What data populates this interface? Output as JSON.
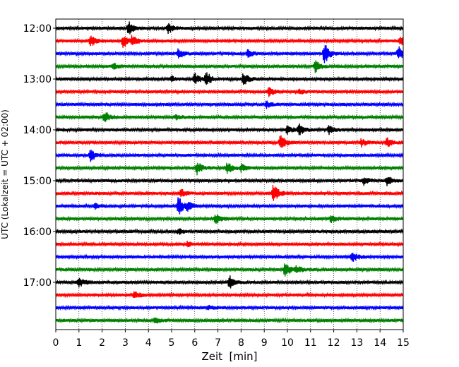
{
  "chart_data": {
    "type": "line",
    "title": "",
    "xlabel": "Zeit  [min]",
    "ylabel": "UTC (Lokalzeit = UTC + 02:00)",
    "xlim": [
      0,
      15
    ],
    "x_ticks": [
      0,
      1,
      2,
      3,
      4,
      5,
      6,
      7,
      8,
      9,
      10,
      11,
      12,
      13,
      14,
      15
    ],
    "x_tick_labels": [
      "0",
      "1",
      "2",
      "3",
      "4",
      "5",
      "6",
      "7",
      "8",
      "9",
      "10",
      "11",
      "12",
      "13",
      "14",
      "15"
    ],
    "y_tick_labels": [
      "12:00",
      "13:00",
      "14:00",
      "15:00",
      "16:00",
      "17:00"
    ],
    "grid": "vertical dotted lines at each minute",
    "legend": "none",
    "row_colors": [
      "#000000",
      "#ff0000",
      "#0000ff",
      "#008000"
    ],
    "rows": [
      {
        "start": "12:00",
        "color": "#000000",
        "events": [
          [
            3.15,
            0.5
          ],
          [
            4.85,
            0.4
          ]
        ]
      },
      {
        "start": "12:15",
        "color": "#ff0000",
        "events": [
          [
            1.5,
            0.45
          ],
          [
            2.9,
            0.55
          ],
          [
            3.3,
            0.4
          ],
          [
            14.9,
            0.35
          ]
        ]
      },
      {
        "start": "12:30",
        "color": "#0000ff",
        "events": [
          [
            5.3,
            0.4
          ],
          [
            8.3,
            0.3
          ],
          [
            11.6,
            0.85
          ],
          [
            14.8,
            0.6
          ]
        ]
      },
      {
        "start": "12:45",
        "color": "#008000",
        "events": [
          [
            2.5,
            0.2
          ],
          [
            11.2,
            0.45
          ]
        ]
      },
      {
        "start": "13:00",
        "color": "#000000",
        "events": [
          [
            6.0,
            0.5
          ],
          [
            6.5,
            0.55
          ],
          [
            8.1,
            0.5
          ],
          [
            5.0,
            0.2
          ]
        ]
      },
      {
        "start": "13:15",
        "color": "#ff0000",
        "events": [
          [
            9.2,
            0.35
          ],
          [
            10.5,
            0.2
          ]
        ]
      },
      {
        "start": "13:30",
        "color": "#0000ff",
        "events": [
          [
            9.1,
            0.25
          ]
        ]
      },
      {
        "start": "13:45",
        "color": "#008000",
        "events": [
          [
            2.1,
            0.5
          ],
          [
            5.2,
            0.2
          ]
        ]
      },
      {
        "start": "14:00",
        "color": "#000000",
        "events": [
          [
            10.0,
            0.35
          ],
          [
            10.5,
            0.45
          ],
          [
            11.8,
            0.35
          ]
        ]
      },
      {
        "start": "14:15",
        "color": "#ff0000",
        "events": [
          [
            9.7,
            0.6
          ],
          [
            13.2,
            0.3
          ],
          [
            14.3,
            0.35
          ]
        ]
      },
      {
        "start": "14:30",
        "color": "#0000ff",
        "events": [
          [
            1.5,
            0.55
          ]
        ]
      },
      {
        "start": "14:45",
        "color": "#008000",
        "events": [
          [
            6.1,
            0.5
          ],
          [
            7.4,
            0.5
          ],
          [
            8.0,
            0.3
          ]
        ]
      },
      {
        "start": "15:00",
        "color": "#000000",
        "events": [
          [
            13.3,
            0.3
          ],
          [
            14.3,
            0.35
          ]
        ]
      },
      {
        "start": "15:15",
        "color": "#ff0000",
        "events": [
          [
            5.4,
            0.35
          ],
          [
            9.4,
            0.75
          ]
        ]
      },
      {
        "start": "15:30",
        "color": "#0000ff",
        "events": [
          [
            5.3,
            0.8
          ],
          [
            5.7,
            0.35
          ],
          [
            1.7,
            0.2
          ]
        ]
      },
      {
        "start": "15:45",
        "color": "#008000",
        "events": [
          [
            6.9,
            0.4
          ],
          [
            11.9,
            0.3
          ]
        ]
      },
      {
        "start": "16:00",
        "color": "#000000",
        "events": [
          [
            5.3,
            0.2
          ]
        ]
      },
      {
        "start": "16:15",
        "color": "#ff0000",
        "events": [
          [
            5.7,
            0.2
          ]
        ]
      },
      {
        "start": "16:30",
        "color": "#0000ff",
        "events": [
          [
            12.8,
            0.4
          ]
        ]
      },
      {
        "start": "16:45",
        "color": "#008000",
        "events": [
          [
            9.9,
            0.65
          ],
          [
            10.4,
            0.3
          ]
        ]
      },
      {
        "start": "17:00",
        "color": "#000000",
        "events": [
          [
            1.0,
            0.4
          ],
          [
            7.5,
            0.7
          ]
        ]
      },
      {
        "start": "17:15",
        "color": "#ff0000",
        "events": [
          [
            3.4,
            0.3
          ]
        ]
      },
      {
        "start": "17:30",
        "color": "#0000ff",
        "events": [
          [
            6.6,
            0.15
          ]
        ]
      },
      {
        "start": "17:45",
        "color": "#008000",
        "events": [
          [
            4.3,
            0.25
          ]
        ]
      }
    ]
  }
}
